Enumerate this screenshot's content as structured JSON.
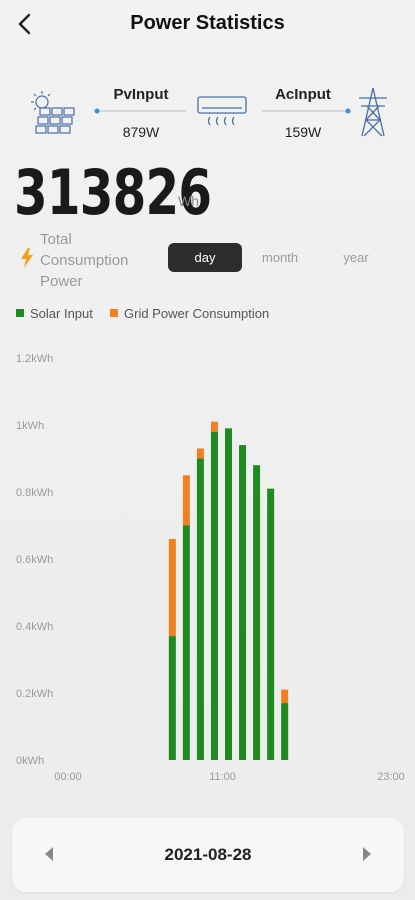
{
  "header": {
    "title": "Power Statistics"
  },
  "flow": {
    "pv_label": "PvInput",
    "pv_value": "879W",
    "ac_label": "AcInput",
    "ac_value": "159W"
  },
  "summary": {
    "total": "313826",
    "unit": "Wh",
    "label": "Total Consumption Power"
  },
  "tabs": [
    {
      "label": "day",
      "active": true
    },
    {
      "label": "month",
      "active": false
    },
    {
      "label": "year",
      "active": false
    }
  ],
  "colors": {
    "solar": "#1f8a1f",
    "grid": "#f08020",
    "tab_active": "#2d2d2d"
  },
  "chart_data": {
    "type": "bar",
    "stacked": true,
    "x_ticks": [
      "00:00",
      "11:00",
      "23:00"
    ],
    "x_range": [
      0,
      23
    ],
    "y_ticks": [
      "0kWh",
      "0.2kWh",
      "0.4kWh",
      "0.6kWh",
      "0.8kWh",
      "1kWh",
      "1.2kWh"
    ],
    "ylim": [
      0,
      1.2
    ],
    "yunit": "kWh",
    "legend": [
      "Solar Input",
      "Grid Power Consumption"
    ],
    "x": [
      7,
      8,
      9,
      10,
      11,
      12,
      13,
      14,
      15
    ],
    "series": [
      {
        "name": "Solar Input",
        "color": "#1f8a1f",
        "values": [
          0.37,
          0.7,
          0.9,
          0.98,
          0.99,
          0.94,
          0.88,
          0.81,
          0.17
        ]
      },
      {
        "name": "Grid Power Consumption",
        "color": "#f08020",
        "values": [
          0.29,
          0.15,
          0.03,
          0.03,
          0.0,
          0.0,
          0.0,
          0.0,
          0.04
        ]
      }
    ]
  },
  "date_nav": {
    "date": "2021-08-28"
  }
}
